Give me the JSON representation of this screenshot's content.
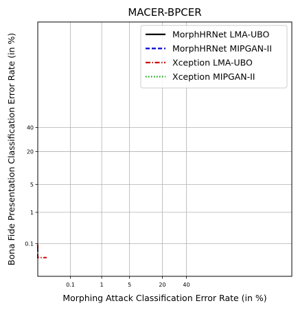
{
  "chart_data": {
    "type": "line",
    "title": "MACER-BPCER",
    "xlabel": "Morphing Attack Classification Error Rate (in %)",
    "ylabel": "Bona Fide Presentation Classification Error Rate (in %)",
    "scale": "normal-deviate (DET)",
    "xlim": [
      0.005,
      99
    ],
    "ylim": [
      0.005,
      99
    ],
    "xticks": [
      0.1,
      1,
      5,
      20,
      40
    ],
    "xtick_labels": [
      "0.1",
      "1",
      "5",
      "20",
      "40"
    ],
    "yticks": [
      0.1,
      1,
      5,
      20,
      40
    ],
    "ytick_labels": [
      "0.1",
      "1",
      "5",
      "20",
      "40"
    ],
    "grid": true,
    "legend_position": "top-right",
    "series": [
      {
        "name": "MorphHRNet LMA-UBO",
        "color": "#000000",
        "dash": "solid",
        "points": [
          [
            0.005,
            0.05
          ],
          [
            0.005,
            0.06
          ]
        ]
      },
      {
        "name": "MorphHRNet MIPGAN-II",
        "color": "#0000cc",
        "dash": "dashed",
        "points": [
          [
            0.005,
            0.05
          ],
          [
            0.005,
            0.06
          ]
        ]
      },
      {
        "name": "Xception LMA-UBO",
        "color": "#cc0000",
        "dash": "dashdot",
        "points": [
          [
            0.005,
            0.092
          ],
          [
            0.005,
            0.03
          ],
          [
            0.012,
            0.03
          ]
        ]
      },
      {
        "name": "Xception MIPGAN-II",
        "color": "#00aa00",
        "dash": "dotted",
        "points": [
          [
            0.005,
            0.05
          ],
          [
            0.005,
            0.06
          ]
        ]
      }
    ]
  }
}
